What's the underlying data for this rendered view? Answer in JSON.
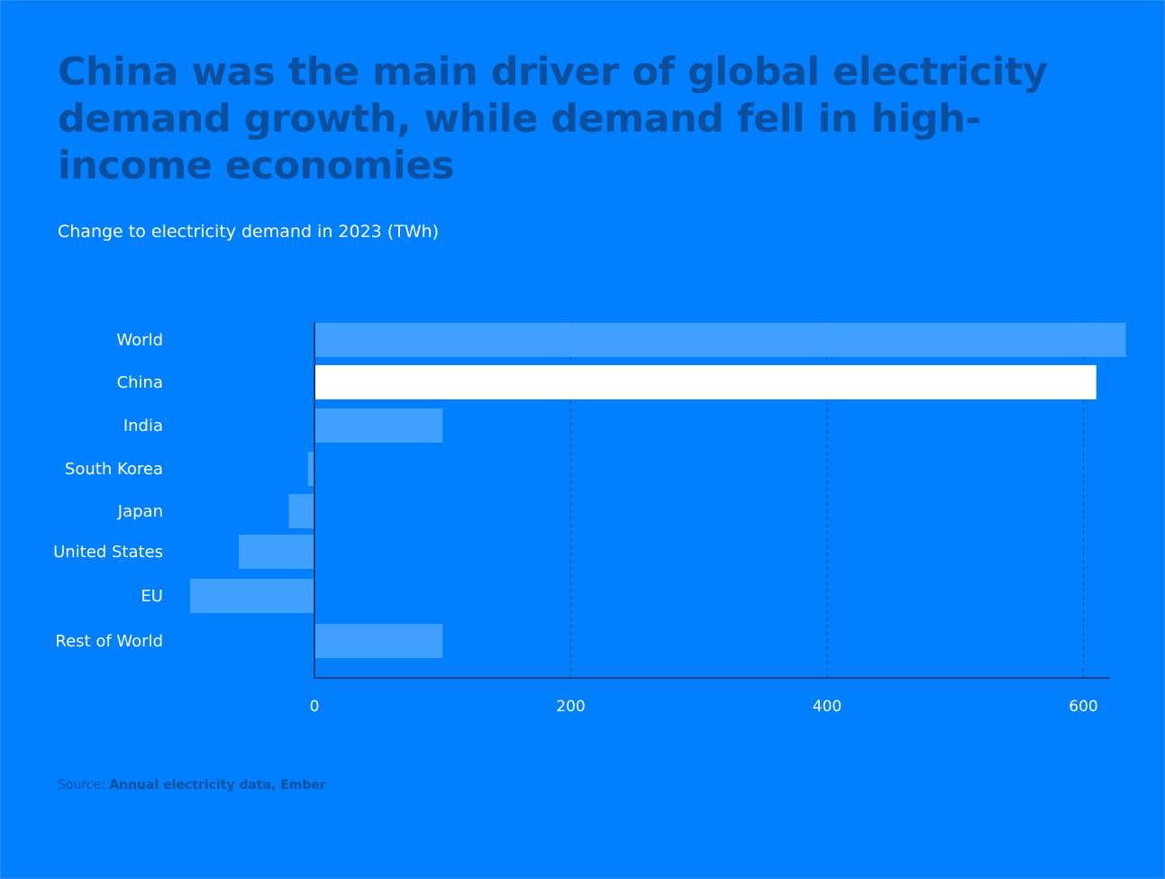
{
  "title": "China was the main driver of global electricity demand growth, while demand fell in high-income economies",
  "subtitle": "Change to electricity demand in 2023 (TWh)",
  "source": {
    "prefix": "Source: ",
    "name": "Annual electricity data, Ember"
  },
  "colors": {
    "background": "#0080ff",
    "bar": "#40a0ff",
    "highlight": "#ffffff",
    "title": "#0a4f9e",
    "axis": "#1c3f7a",
    "grid": "#1c4d8f"
  },
  "chart_data": {
    "type": "bar",
    "orientation": "horizontal",
    "title": "China was the main driver of global electricity demand growth, while demand fell in high-income economies",
    "xlabel": "Change to electricity demand in 2023 (TWh)",
    "ylabel": "",
    "categories": [
      "World",
      "China",
      "India",
      "South Korea",
      "Japan",
      "United States",
      "EU",
      "Rest of World"
    ],
    "values": [
      633,
      610,
      100,
      -5,
      -20,
      -59,
      -97,
      100
    ],
    "highlight": "China",
    "xlim": [
      -97,
      633
    ],
    "xticks": [
      0,
      200,
      400,
      600
    ],
    "xtick_labels": [
      "0",
      "200",
      "400",
      "600"
    ],
    "grid": "vertical dashed"
  }
}
